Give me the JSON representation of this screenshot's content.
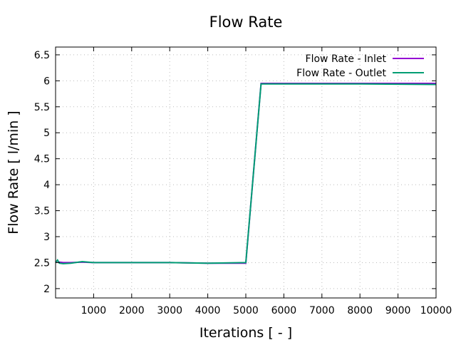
{
  "chart_data": {
    "type": "line",
    "title": "Flow Rate",
    "xlabel": "Iterations [ - ]",
    "ylabel": "Flow Rate [ l/min ]",
    "xlim": [
      0,
      10000
    ],
    "ylim": [
      1.82,
      6.65
    ],
    "xticks": [
      1000,
      2000,
      3000,
      4000,
      5000,
      6000,
      7000,
      8000,
      9000,
      10000
    ],
    "yticks": [
      2,
      2.5,
      3,
      3.5,
      4,
      4.5,
      5,
      5.5,
      6,
      6.5
    ],
    "ytick_labels": [
      "2",
      "2.5",
      "3",
      "3.5",
      "4",
      "4.5",
      "5",
      "5.5",
      "6",
      "6.5"
    ],
    "grid": true,
    "legend_position": "top-right",
    "series": [
      {
        "name": "Flow Rate - Inlet",
        "color": "#9400d3",
        "x": [
          0,
          50,
          100,
          200,
          400,
          700,
          1000,
          2000,
          3000,
          4000,
          5000,
          5400,
          6000,
          8000,
          10000
        ],
        "y": [
          2.52,
          2.53,
          2.51,
          2.5,
          2.5,
          2.51,
          2.5,
          2.5,
          2.5,
          2.49,
          2.49,
          5.95,
          5.95,
          5.95,
          5.95
        ]
      },
      {
        "name": "Flow Rate - Outlet",
        "color": "#009e73",
        "x": [
          0,
          50,
          100,
          200,
          400,
          700,
          1000,
          2000,
          3000,
          4000,
          5000,
          5400,
          6000,
          8000,
          10000
        ],
        "y": [
          2.5,
          2.55,
          2.49,
          2.48,
          2.49,
          2.52,
          2.5,
          2.5,
          2.5,
          2.49,
          2.5,
          5.94,
          5.94,
          5.94,
          5.93
        ]
      }
    ]
  }
}
